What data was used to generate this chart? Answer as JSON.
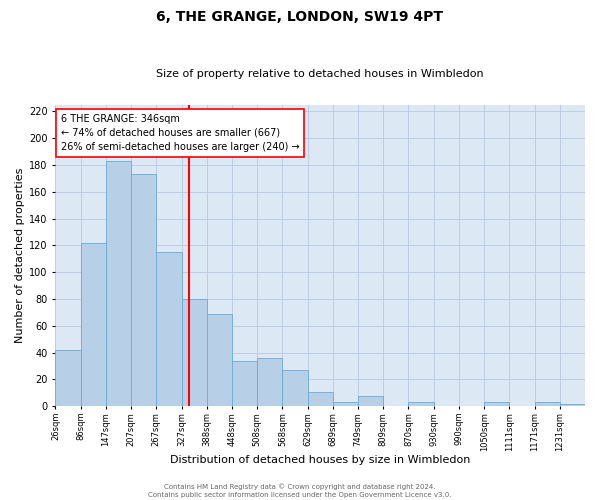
{
  "title": "6, THE GRANGE, LONDON, SW19 4PT",
  "subtitle": "Size of property relative to detached houses in Wimbledon",
  "xlabel": "Distribution of detached houses by size in Wimbledon",
  "ylabel": "Number of detached properties",
  "bar_color": "#b8cfe8",
  "bar_edge_color": "#6aaad4",
  "bg_color": "#dde8f5",
  "grid_color": "#b8c8e0",
  "vline_color": "red",
  "vline_bin_index": 5,
  "annotation_lines": [
    "6 THE GRANGE: 346sqm",
    "← 74% of detached houses are smaller (667)",
    "26% of semi-detached houses are larger (240) →"
  ],
  "annotation_box_color": "white",
  "annotation_border_color": "red",
  "values": [
    42,
    122,
    183,
    173,
    115,
    80,
    69,
    34,
    36,
    27,
    11,
    3,
    8,
    0,
    3,
    0,
    0,
    3,
    0,
    3,
    2
  ],
  "ylim": [
    0,
    225
  ],
  "yticks": [
    0,
    20,
    40,
    60,
    80,
    100,
    120,
    140,
    160,
    180,
    200,
    220
  ],
  "footer_lines": [
    "Contains HM Land Registry data © Crown copyright and database right 2024.",
    "Contains public sector information licensed under the Open Government Licence v3.0."
  ],
  "tick_labels": [
    "26sqm",
    "86sqm",
    "147sqm",
    "207sqm",
    "267sqm",
    "327sqm",
    "388sqm",
    "448sqm",
    "508sqm",
    "568sqm",
    "629sqm",
    "689sqm",
    "749sqm",
    "809sqm",
    "870sqm",
    "930sqm",
    "990sqm",
    "1050sqm",
    "1111sqm",
    "1171sqm",
    "1231sqm"
  ],
  "title_fontsize": 10,
  "subtitle_fontsize": 8,
  "xlabel_fontsize": 8,
  "ylabel_fontsize": 8,
  "tick_fontsize": 6,
  "ytick_fontsize": 7,
  "annotation_fontsize": 7,
  "footer_fontsize": 5
}
